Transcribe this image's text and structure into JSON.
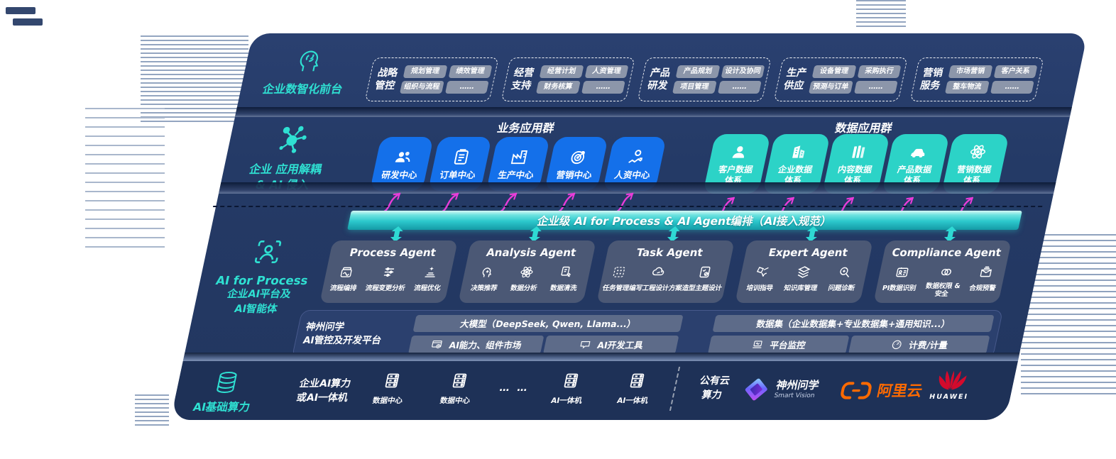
{
  "colors": {
    "accent_teal": "#2FE0D2",
    "tile_blue": "#1470EA",
    "tile_teal": "#2CD3C7",
    "arrow_magenta": "#E93CD9",
    "aliyun_orange": "#FF6A00",
    "huawei_red": "#D40A2C"
  },
  "front_office": {
    "label": "企业数智化前台",
    "icon": "brain-icon",
    "groups": [
      {
        "name": "战略管控",
        "pills": [
          "规划管理",
          "绩效管理",
          "组织与流程",
          "……"
        ]
      },
      {
        "name": "经营支持",
        "pills": [
          "经营计划",
          "人资管理",
          "财务核算",
          "……"
        ]
      },
      {
        "name": "产品研发",
        "pills": [
          "产品规划",
          "设计及协同",
          "项目管理",
          "……"
        ]
      },
      {
        "name": "生产供应",
        "pills": [
          "设备管理",
          "采购执行",
          "预测与订单",
          "……"
        ]
      },
      {
        "name": "营销服务",
        "pills": [
          "市场营销",
          "客户关系",
          "整车物流",
          "……"
        ]
      }
    ]
  },
  "app_layer": {
    "icon": "molecule-icon",
    "label_line1": "企业 应用解耦",
    "label_line2": "& AI 侵入",
    "business_title": "业务应用群",
    "data_title": "数据应用群",
    "business_apps": [
      {
        "label": "研发中心",
        "icon": "users-icon"
      },
      {
        "label": "订单中心",
        "icon": "clipboard-icon"
      },
      {
        "label": "生产中心",
        "icon": "factory-icon"
      },
      {
        "label": "营销中心",
        "icon": "target-icon"
      },
      {
        "label": "人资中心",
        "icon": "person-chart-icon"
      }
    ],
    "data_apps": [
      {
        "label": "客户数据体系",
        "icon": "user-icon"
      },
      {
        "label": "企业数据体系",
        "icon": "building-icon"
      },
      {
        "label": "内容数据体系",
        "icon": "library-icon"
      },
      {
        "label": "产品数据体系",
        "icon": "car-icon"
      },
      {
        "label": "营销数据体系",
        "icon": "atom-icon"
      }
    ]
  },
  "orchestration": {
    "label": "企业级 AI for Process & AI Agent编排（AI接入规范）"
  },
  "agent_layer": {
    "icon": "scan-person-icon",
    "label_line1": "AI for Process",
    "label_line2": "企业AI平台及",
    "label_line3": "AI智能体",
    "agents": [
      {
        "title": "Process Agent",
        "items": [
          {
            "label": "流程编排",
            "icon": "workflow-icon"
          },
          {
            "label": "流程变更分析",
            "icon": "sliders-icon"
          },
          {
            "label": "流程优化",
            "icon": "optimize-icon"
          }
        ]
      },
      {
        "title": "Analysis Agent",
        "items": [
          {
            "label": "决策推荐",
            "icon": "decision-icon"
          },
          {
            "label": "数据分析",
            "icon": "atom-icon"
          },
          {
            "label": "数据清洗",
            "icon": "clean-data-icon"
          }
        ]
      },
      {
        "title": "Task Agent",
        "items": [
          {
            "label": "任务管理",
            "icon": "task-grid-icon"
          },
          {
            "label": "编写工程设计方案",
            "icon": "cloud-edit-icon"
          },
          {
            "label": "造型主题设计",
            "icon": "design-doc-icon"
          }
        ]
      },
      {
        "title": "Expert Agent",
        "items": [
          {
            "label": "培训指导",
            "icon": "training-icon"
          },
          {
            "label": "知识库管理",
            "icon": "layers-icon"
          },
          {
            "label": "问题诊断",
            "icon": "diagnose-icon"
          }
        ]
      },
      {
        "title": "Compliance Agent",
        "items": [
          {
            "label": "PI数据识别",
            "icon": "id-card-icon"
          },
          {
            "label": "数据权限 & 安全",
            "icon": "permission-icon"
          },
          {
            "label": "合规预警",
            "icon": "alert-mail-icon"
          }
        ]
      }
    ]
  },
  "platform": {
    "label_line1": "神州问学",
    "label_line2": "AI管控及开发平台",
    "model_bar": "大模型（DeepSeek, Qwen, Llama...）",
    "dataset_bar": "数据集（企业数据集+专业数据集+通用知识...）",
    "cells": [
      {
        "label": "AI能力、组件市场",
        "icon": "market-icon"
      },
      {
        "label": "AI开发工具",
        "icon": "devtools-icon"
      },
      {
        "label": "平台监控",
        "icon": "monitor-icon"
      },
      {
        "label": "计费/计量",
        "icon": "gauge-icon"
      }
    ]
  },
  "infra": {
    "icon": "database-icon",
    "label": "AI基础算力",
    "compute_line1": "企业AI算力",
    "compute_line2": "或AI一体机",
    "nodes": [
      {
        "label": "数据中心",
        "icon": "server-icon"
      },
      {
        "label": "数据中心",
        "icon": "server-icon"
      },
      {
        "label": "AI一体机",
        "icon": "server-icon"
      },
      {
        "label": "AI一体机",
        "icon": "server-icon"
      }
    ],
    "ellipsis": "…  …",
    "cloud_line1": "公有云",
    "cloud_line2": "算力",
    "vendors": {
      "shenzhou": {
        "name": "神州问学",
        "sub": "Smart Vision",
        "icon": "shenzhou-logo"
      },
      "aliyun": {
        "name": "阿里云",
        "icon": "aliyun-logo"
      },
      "huawei": {
        "name": "HUAWEI",
        "icon": "huawei-logo"
      }
    }
  }
}
